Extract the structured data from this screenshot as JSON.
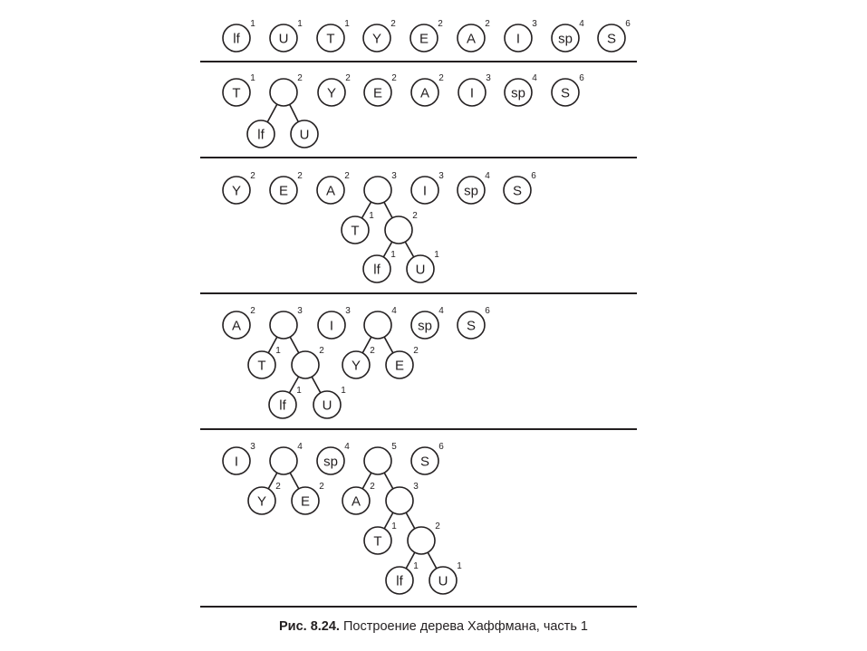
{
  "figure": {
    "caption_number": "Рис. 8.24.",
    "caption_text": "Построение дерева Хаффмана, часть 1"
  },
  "colors": {
    "ink": "#231f20",
    "background": "#ffffff"
  },
  "diagram": {
    "type": "huffman-tree-construction",
    "steps": [
      {
        "roots": [
          {
            "label": "lf",
            "weight": "1"
          },
          {
            "label": "U",
            "weight": "1"
          },
          {
            "label": "T",
            "weight": "1"
          },
          {
            "label": "Y",
            "weight": "2"
          },
          {
            "label": "E",
            "weight": "2"
          },
          {
            "label": "A",
            "weight": "2"
          },
          {
            "label": "I",
            "weight": "3"
          },
          {
            "label": "sp",
            "weight": "4"
          },
          {
            "label": "S",
            "weight": "6"
          }
        ]
      },
      {
        "roots": [
          {
            "label": "T",
            "weight": "1"
          },
          {
            "label": "",
            "weight": "2",
            "children": [
              {
                "label": "lf",
                "weight": ""
              },
              {
                "label": "U",
                "weight": ""
              }
            ]
          },
          {
            "label": "Y",
            "weight": "2"
          },
          {
            "label": "E",
            "weight": "2"
          },
          {
            "label": "A",
            "weight": "2"
          },
          {
            "label": "I",
            "weight": "3"
          },
          {
            "label": "sp",
            "weight": "4"
          },
          {
            "label": "S",
            "weight": "6"
          }
        ]
      },
      {
        "roots": [
          {
            "label": "Y",
            "weight": "2"
          },
          {
            "label": "E",
            "weight": "2"
          },
          {
            "label": "A",
            "weight": "2"
          },
          {
            "label": "",
            "weight": "3",
            "children": [
              {
                "label": "T",
                "weight": "1"
              },
              {
                "label": "",
                "weight": "2",
                "children": [
                  {
                    "label": "lf",
                    "weight": "1"
                  },
                  {
                    "label": "U",
                    "weight": "1"
                  }
                ]
              }
            ]
          },
          {
            "label": "I",
            "weight": "3"
          },
          {
            "label": "sp",
            "weight": "4"
          },
          {
            "label": "S",
            "weight": "6"
          }
        ]
      },
      {
        "roots": [
          {
            "label": "A",
            "weight": "2"
          },
          {
            "label": "",
            "weight": "3",
            "children": [
              {
                "label": "T",
                "weight": "1"
              },
              {
                "label": "",
                "weight": "2",
                "children": [
                  {
                    "label": "lf",
                    "weight": "1"
                  },
                  {
                    "label": "U",
                    "weight": "1"
                  }
                ]
              }
            ]
          },
          {
            "label": "I",
            "weight": "3"
          },
          {
            "label": "",
            "weight": "4",
            "children": [
              {
                "label": "Y",
                "weight": "2"
              },
              {
                "label": "E",
                "weight": "2"
              }
            ]
          },
          {
            "label": "sp",
            "weight": "4"
          },
          {
            "label": "S",
            "weight": "6"
          }
        ]
      },
      {
        "roots": [
          {
            "label": "I",
            "weight": "3"
          },
          {
            "label": "",
            "weight": "4",
            "children": [
              {
                "label": "Y",
                "weight": "2"
              },
              {
                "label": "E",
                "weight": "2"
              }
            ]
          },
          {
            "label": "sp",
            "weight": "4"
          },
          {
            "label": "",
            "weight": "5",
            "children": [
              {
                "label": "A",
                "weight": "2"
              },
              {
                "label": "",
                "weight": "3",
                "children": [
                  {
                    "label": "T",
                    "weight": "1"
                  },
                  {
                    "label": "",
                    "weight": "2",
                    "children": [
                      {
                        "label": "lf",
                        "weight": "1"
                      },
                      {
                        "label": "U",
                        "weight": "1"
                      }
                    ]
                  }
                ]
              }
            ]
          },
          {
            "label": "S",
            "weight": "6"
          }
        ]
      }
    ]
  }
}
